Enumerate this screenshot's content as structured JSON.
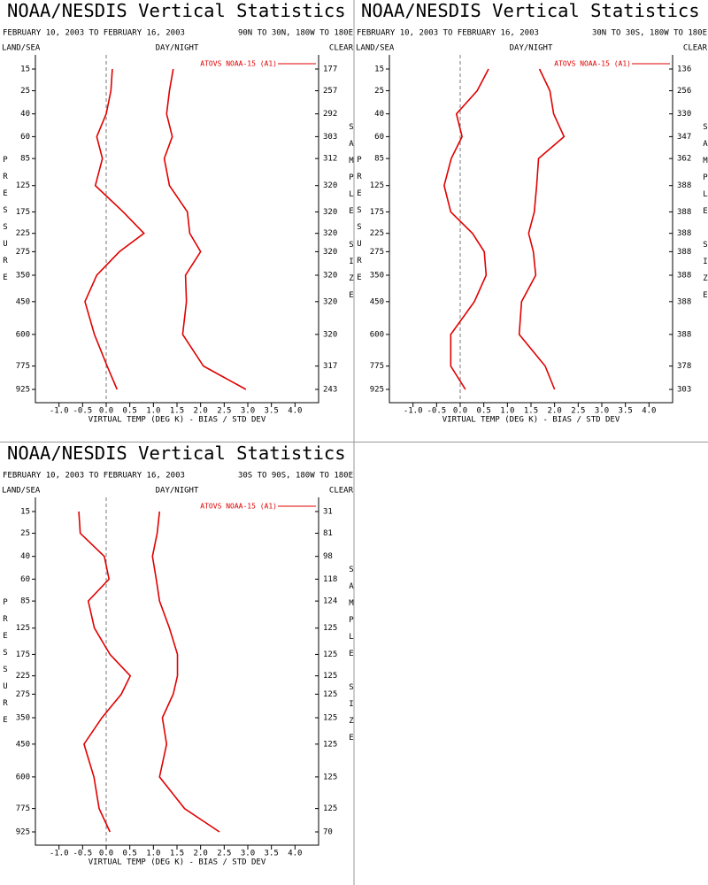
{
  "chart_data": [
    {
      "type": "line",
      "title": "NOAA/NESDIS Vertical Statistics",
      "subtitle": "FEBRUARY 10, 2003 TO FEBRUARY 16, 2003",
      "region": "90N TO 30N, 180W TO 180E",
      "land_sea_label": "LAND/SEA",
      "day_night_label": "DAY/NIGHT",
      "clear_label": "CLEAR",
      "ylabel": "PRESSURE",
      "y2label": "SAMPLE SIZE",
      "xlabel": "VIRTUAL TEMP (DEG K) - BIAS / STD DEV",
      "y": [
        15,
        25,
        40,
        60,
        85,
        125,
        175,
        225,
        275,
        350,
        450,
        600,
        775,
        925
      ],
      "ylim": [
        15,
        925
      ],
      "xlim": [
        -1.5,
        4.5
      ],
      "xticks": [
        {
          "value": -1,
          "label": "-1.0"
        },
        {
          "value": -0.5,
          "label": "-0.5"
        },
        {
          "value": 0,
          "label": "0.0"
        },
        {
          "value": 0.5,
          "label": "0.5"
        },
        {
          "value": 1,
          "label": "1.0"
        },
        {
          "value": 1.5,
          "label": "1.5"
        },
        {
          "value": 2,
          "label": "2.0"
        },
        {
          "value": 2.5,
          "label": "2.5"
        },
        {
          "value": 3,
          "label": "3.0"
        },
        {
          "value": 3.5,
          "label": "3.5"
        },
        {
          "value": 4,
          "label": "4.0"
        }
      ],
      "sample_size": [
        177,
        257,
        292,
        303,
        312,
        320,
        320,
        320,
        320,
        320,
        320,
        320,
        317,
        243
      ],
      "series": [
        {
          "name": "ATOVS NOAA-15 (A1)",
          "color": "#e00000",
          "values": [
            0.13,
            0.1,
            0.0,
            -0.2,
            -0.08,
            -0.23,
            0.36,
            0.8,
            0.28,
            -0.2,
            -0.45,
            -0.25,
            0.02,
            0.23
          ]
        },
        {
          "color": "#e00000",
          "values": [
            1.42,
            1.34,
            1.28,
            1.4,
            1.23,
            1.34,
            1.72,
            1.77,
            2.0,
            1.68,
            1.7,
            1.62,
            2.06,
            2.96
          ]
        }
      ]
    },
    {
      "type": "line",
      "title": "NOAA/NESDIS Vertical Statistics",
      "subtitle": "FEBRUARY 10, 2003 TO FEBRUARY 16, 2003",
      "region": "30N TO 30S, 180W TO 180E",
      "land_sea_label": "LAND/SEA",
      "day_night_label": "DAY/NIGHT",
      "clear_label": "CLEAR",
      "ylabel": "PRESSURE",
      "y2label": "SAMPLE SIZE",
      "xlabel": "VIRTUAL TEMP (DEG K) - BIAS / STD DEV",
      "y": [
        15,
        25,
        40,
        60,
        85,
        125,
        175,
        225,
        275,
        350,
        450,
        600,
        775,
        925
      ],
      "ylim": [
        15,
        925
      ],
      "xlim": [
        -1.5,
        4.5
      ],
      "xticks": [
        {
          "value": -1,
          "label": "-1.0"
        },
        {
          "value": -0.5,
          "label": "-0.5"
        },
        {
          "value": 0,
          "label": "0.0"
        },
        {
          "value": 0.5,
          "label": "0.5"
        },
        {
          "value": 1,
          "label": "1.0"
        },
        {
          "value": 1.5,
          "label": "1.5"
        },
        {
          "value": 2,
          "label": "2.0"
        },
        {
          "value": 2.5,
          "label": "2.5"
        },
        {
          "value": 3,
          "label": "3.0"
        },
        {
          "value": 3.5,
          "label": "3.5"
        },
        {
          "value": 4,
          "label": "4.0"
        }
      ],
      "sample_size": [
        136,
        256,
        330,
        347,
        362,
        388,
        388,
        388,
        388,
        388,
        388,
        388,
        378,
        303
      ],
      "series": [
        {
          "name": "ATOVS NOAA-15 (A1)",
          "color": "#e00000",
          "values": [
            0.6,
            0.36,
            -0.08,
            0.04,
            -0.19,
            -0.34,
            -0.2,
            0.26,
            0.51,
            0.55,
            0.3,
            -0.2,
            -0.2,
            0.11
          ]
        },
        {
          "color": "#e00000",
          "values": [
            1.68,
            1.9,
            1.98,
            2.2,
            1.66,
            1.62,
            1.57,
            1.45,
            1.55,
            1.6,
            1.3,
            1.25,
            1.8,
            2.0
          ]
        }
      ]
    },
    {
      "type": "line",
      "title": "NOAA/NESDIS Vertical Statistics",
      "subtitle": "FEBRUARY 10, 2003 TO FEBRUARY 16, 2003",
      "region": "30S TO 90S, 180W TO 180E",
      "land_sea_label": "LAND/SEA",
      "day_night_label": "DAY/NIGHT",
      "clear_label": "CLEAR",
      "ylabel": "PRESSURE",
      "y2label": "SAMPLE SIZE",
      "xlabel": "VIRTUAL TEMP (DEG K) - BIAS / STD DEV",
      "y": [
        15,
        25,
        40,
        60,
        85,
        125,
        175,
        225,
        275,
        350,
        450,
        600,
        775,
        925
      ],
      "ylim": [
        15,
        925
      ],
      "xlim": [
        -1.5,
        4.5
      ],
      "xticks": [
        {
          "value": -1,
          "label": "-1.0"
        },
        {
          "value": -0.5,
          "label": "-0.5"
        },
        {
          "value": 0,
          "label": "0.0"
        },
        {
          "value": 0.5,
          "label": "0.5"
        },
        {
          "value": 1,
          "label": "1.0"
        },
        {
          "value": 1.5,
          "label": "1.5"
        },
        {
          "value": 2,
          "label": "2.0"
        },
        {
          "value": 2.5,
          "label": "2.5"
        },
        {
          "value": 3,
          "label": "3.0"
        },
        {
          "value": 3.5,
          "label": "3.5"
        },
        {
          "value": 4,
          "label": "4.0"
        }
      ],
      "sample_size": [
        31,
        81,
        98,
        118,
        124,
        125,
        125,
        125,
        125,
        125,
        125,
        125,
        125,
        70
      ],
      "series": [
        {
          "name": "ATOVS NOAA-15 (A1)",
          "color": "#e00000",
          "values": [
            -0.58,
            -0.55,
            -0.04,
            0.06,
            -0.38,
            -0.25,
            0.08,
            0.51,
            0.32,
            -0.09,
            -0.47,
            -0.26,
            -0.15,
            0.08
          ]
        },
        {
          "color": "#e00000",
          "values": [
            1.13,
            1.08,
            0.98,
            1.06,
            1.13,
            1.34,
            1.51,
            1.51,
            1.42,
            1.19,
            1.28,
            1.13,
            1.66,
            2.4
          ]
        }
      ]
    }
  ]
}
